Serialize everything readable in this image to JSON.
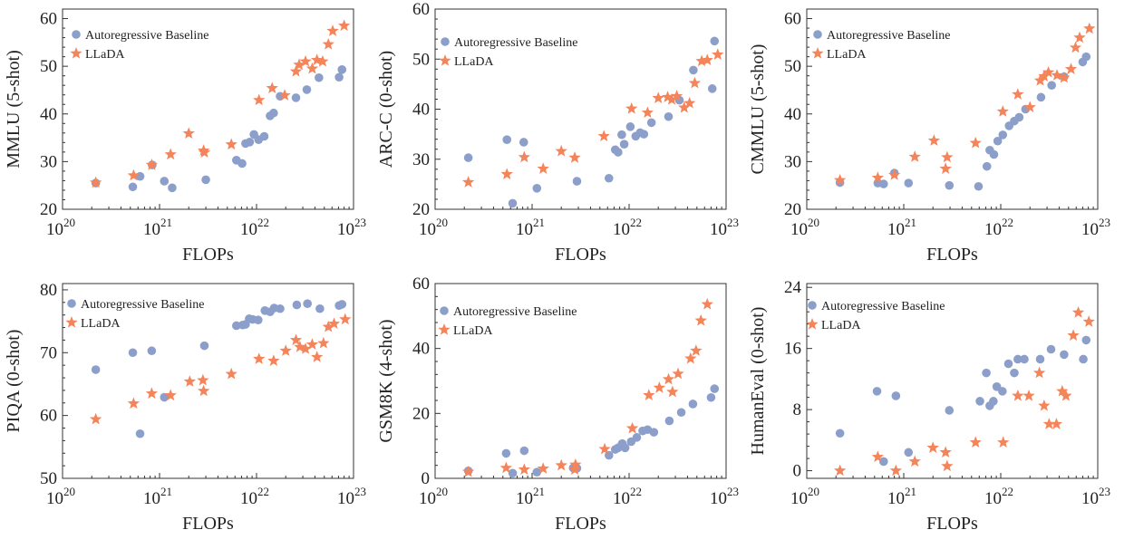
{
  "colors": {
    "baseline": "#8C9FCA",
    "llada": "#F4845A"
  },
  "chart_data": [
    {
      "type": "scatter",
      "ylabel": "MMLU (5-shot)",
      "xlabel": "FLOPs",
      "xscale": "log",
      "xlim": [
        1e+20,
        1e+23
      ],
      "x_ticks": [
        {
          "base": "10",
          "exp": "20"
        },
        {
          "base": "10",
          "exp": "21"
        },
        {
          "base": "10",
          "exp": "22"
        },
        {
          "base": "10",
          "exp": "23"
        }
      ],
      "ylim": [
        20,
        62
      ],
      "y_ticks": [
        20,
        30,
        40,
        50,
        60
      ],
      "legend": "top-left",
      "series": [
        {
          "name": "Autoregressive Baseline",
          "marker": "circle",
          "x": [
            2.2e+20,
            5.3e+20,
            6.3e+20,
            8.4e+20,
            1.12e+21,
            1.35e+21,
            3e+21,
            6.2e+21,
            7.1e+21,
            7.7e+21,
            8.5e+21,
            9.4e+21,
            1.05e+22,
            1.2e+22,
            1.38e+22,
            1.5e+22,
            1.75e+22,
            2.55e+22,
            3.3e+22,
            4.4e+22,
            7.1e+22,
            7.6e+22
          ],
          "y": [
            25.5,
            24.7,
            26.9,
            29.3,
            25.9,
            24.5,
            26.2,
            30.3,
            29.6,
            33.8,
            34.1,
            35.7,
            34.6,
            35.3,
            39.6,
            40.2,
            43.7,
            43.4,
            45.1,
            47.6,
            47.7,
            49.3
          ]
        },
        {
          "name": "LLaDA",
          "marker": "star",
          "x": [
            2.2e+20,
            5.4e+20,
            8.3e+20,
            1.3e+21,
            2e+21,
            2.85e+21,
            2.9e+21,
            5.5e+21,
            1.06e+22,
            1.45e+22,
            1.95e+22,
            2.55e+22,
            2.75e+22,
            3.2e+22,
            3.75e+22,
            4.2e+22,
            4.8e+22,
            5.5e+22,
            6.1e+22,
            8e+22
          ],
          "y": [
            25.6,
            27.1,
            29.3,
            31.5,
            35.9,
            32.3,
            31.9,
            33.6,
            42.9,
            45.4,
            43.9,
            48.9,
            50.3,
            51.0,
            49.5,
            51.3,
            51.0,
            54.6,
            57.4,
            58.5
          ]
        }
      ]
    },
    {
      "type": "scatter",
      "ylabel": "ARC-C (0-shot)",
      "xlabel": "FLOPs",
      "xscale": "log",
      "xlim": [
        1e+20,
        1e+23
      ],
      "x_ticks": [
        {
          "base": "10",
          "exp": "20"
        },
        {
          "base": "10",
          "exp": "21"
        },
        {
          "base": "10",
          "exp": "22"
        },
        {
          "base": "10",
          "exp": "23"
        }
      ],
      "ylim": [
        20,
        60
      ],
      "y_ticks": [
        20,
        30,
        40,
        50,
        60
      ],
      "legend": "top-center",
      "series": [
        {
          "name": "Autoregressive Baseline",
          "marker": "circle",
          "x": [
            2.2e+20,
            5.5e+20,
            6.3e+20,
            8.2e+20,
            1.12e+21,
            2.9e+21,
            6.2e+21,
            7.2e+21,
            7.7e+21,
            8.4e+21,
            8.9e+21,
            1.03e+22,
            1.17e+22,
            1.3e+22,
            1.42e+22,
            1.7e+22,
            2.55e+22,
            3.3e+22,
            4.6e+22,
            7.2e+22,
            7.6e+22
          ],
          "y": [
            30.3,
            33.9,
            21.2,
            33.4,
            24.2,
            25.6,
            26.2,
            31.9,
            31.4,
            34.9,
            33.0,
            36.5,
            34.6,
            35.3,
            35.0,
            37.3,
            38.5,
            41.8,
            47.8,
            44.1,
            53.6
          ]
        },
        {
          "name": "LLaDA",
          "marker": "star",
          "x": [
            2.2e+20,
            5.5e+20,
            8.3e+20,
            1.3e+21,
            2e+21,
            2.75e+21,
            5.5e+21,
            1.06e+22,
            1.55e+22,
            2e+22,
            2.5e+22,
            2.75e+22,
            3.1e+22,
            3.7e+22,
            4.2e+22,
            4.75e+22,
            5.6e+22,
            6.4e+22,
            8.2e+22
          ],
          "y": [
            25.4,
            27.0,
            30.4,
            28.1,
            31.6,
            30.3,
            34.6,
            40.1,
            39.3,
            42.2,
            42.4,
            41.9,
            42.6,
            40.3,
            41.2,
            45.2,
            49.6,
            49.8,
            50.9
          ]
        }
      ]
    },
    {
      "type": "scatter",
      "ylabel": "CMMLU (5-shot)",
      "xlabel": "FLOPs",
      "xscale": "log",
      "xlim": [
        1e+20,
        1e+23
      ],
      "x_ticks": [
        {
          "base": "10",
          "exp": "20"
        },
        {
          "base": "10",
          "exp": "21"
        },
        {
          "base": "10",
          "exp": "22"
        },
        {
          "base": "10",
          "exp": "23"
        }
      ],
      "ylim": [
        20,
        62
      ],
      "y_ticks": [
        20,
        30,
        40,
        50,
        60
      ],
      "legend": "top-left",
      "series": [
        {
          "name": "Autoregressive Baseline",
          "marker": "circle",
          "x": [
            2.2e+20,
            5.4e+20,
            6.2e+20,
            8e+20,
            1.12e+21,
            2.95e+21,
            5.9e+21,
            7.2e+21,
            7.7e+21,
            8.5e+21,
            9.3e+21,
            1.05e+22,
            1.22e+22,
            1.38e+22,
            1.55e+22,
            1.8e+22,
            2.6e+22,
            3.35e+22,
            4.5e+22,
            7e+22,
            7.6e+22
          ],
          "y": [
            25.6,
            25.5,
            25.3,
            27.6,
            25.5,
            25.0,
            24.8,
            29.0,
            32.4,
            31.5,
            34.3,
            35.6,
            37.5,
            38.5,
            39.3,
            41.0,
            43.5,
            46.0,
            47.8,
            50.9,
            52.0
          ]
        },
        {
          "name": "LLaDA",
          "marker": "star",
          "x": [
            2.2e+20,
            5.4e+20,
            8e+20,
            1.3e+21,
            2.05e+21,
            2.7e+21,
            2.8e+21,
            5.5e+21,
            1.05e+22,
            1.5e+22,
            2e+22,
            2.55e+22,
            2.8e+22,
            3.1e+22,
            3.8e+22,
            4.5e+22,
            5.3e+22,
            5.9e+22,
            6.5e+22,
            8.2e+22
          ],
          "y": [
            26.1,
            26.6,
            27.2,
            31.0,
            34.4,
            28.5,
            30.9,
            33.9,
            40.5,
            44.1,
            41.4,
            47.0,
            47.9,
            48.7,
            48.1,
            47.6,
            49.4,
            53.9,
            56.0,
            57.9
          ]
        }
      ]
    },
    {
      "type": "scatter",
      "ylabel": "PIQA (0-shot)",
      "xlabel": "FLOPs",
      "xscale": "log",
      "xlim": [
        1e+20,
        1e+23
      ],
      "x_ticks": [
        {
          "base": "10",
          "exp": "20"
        },
        {
          "base": "10",
          "exp": "21"
        },
        {
          "base": "10",
          "exp": "22"
        },
        {
          "base": "10",
          "exp": "23"
        }
      ],
      "ylim": [
        50,
        81
      ],
      "y_ticks": [
        50,
        60,
        70,
        80
      ],
      "legend": "top-left",
      "series": [
        {
          "name": "Autoregressive Baseline",
          "marker": "circle",
          "x": [
            2.2e+20,
            5.3e+20,
            6.3e+20,
            8.3e+20,
            1.12e+21,
            2.9e+21,
            6.2e+21,
            7.2e+21,
            7.7e+21,
            8.4e+21,
            9.1e+21,
            1.04e+22,
            1.22e+22,
            1.38e+22,
            1.52e+22,
            1.75e+22,
            2.6e+22,
            3.35e+22,
            4.5e+22,
            7.1e+22,
            7.6e+22
          ],
          "y": [
            67.3,
            70.0,
            57.1,
            70.3,
            62.9,
            71.1,
            74.3,
            74.4,
            74.5,
            75.4,
            75.3,
            75.2,
            76.7,
            76.5,
            77.1,
            77.0,
            77.6,
            77.8,
            77.0,
            77.5,
            77.7
          ]
        },
        {
          "name": "LLaDA",
          "marker": "star",
          "x": [
            2.2e+20,
            5.4e+20,
            8.3e+20,
            1.3e+21,
            2.05e+21,
            2.8e+21,
            2.85e+21,
            5.5e+21,
            1.06e+22,
            1.5e+22,
            2e+22,
            2.55e+22,
            2.8e+22,
            3.2e+22,
            3.75e+22,
            4.2e+22,
            4.9e+22,
            5.5e+22,
            6.3e+22,
            8.2e+22
          ],
          "y": [
            59.4,
            61.9,
            63.5,
            63.2,
            65.4,
            65.6,
            63.9,
            66.6,
            69.0,
            68.7,
            70.3,
            72.0,
            70.9,
            70.6,
            71.3,
            69.3,
            71.5,
            74.1,
            74.6,
            75.3
          ]
        }
      ]
    },
    {
      "type": "scatter",
      "ylabel": "GSM8K (4-shot)",
      "xlabel": "FLOPs",
      "xscale": "log",
      "xlim": [
        1e+20,
        1e+23
      ],
      "x_ticks": [
        {
          "base": "10",
          "exp": "20"
        },
        {
          "base": "10",
          "exp": "21"
        },
        {
          "base": "10",
          "exp": "22"
        },
        {
          "base": "10",
          "exp": "23"
        }
      ],
      "ylim": [
        0,
        60
      ],
      "y_ticks": [
        0,
        20,
        40,
        60
      ],
      "legend": "top-left",
      "series": [
        {
          "name": "Autoregressive Baseline",
          "marker": "circle",
          "x": [
            2.2e+20,
            5.4e+20,
            6.3e+20,
            8.3e+20,
            1.12e+21,
            2.65e+21,
            2.9e+21,
            6.2e+21,
            7.2e+21,
            7.7e+21,
            8.5e+21,
            9.1e+21,
            1.05e+22,
            1.2e+22,
            1.38e+22,
            1.55e+22,
            1.8e+22,
            2.6e+22,
            3.45e+22,
            4.55e+22,
            7e+22,
            7.6e+22
          ],
          "y": [
            2.3,
            7.7,
            1.6,
            8.5,
            1.9,
            3.2,
            3.1,
            7.1,
            8.9,
            9.4,
            10.7,
            9.4,
            11.3,
            12.6,
            14.6,
            15.0,
            14.2,
            17.7,
            20.3,
            22.9,
            24.9,
            27.6
          ]
        },
        {
          "name": "LLaDA",
          "marker": "star",
          "x": [
            2.2e+20,
            5.4e+20,
            8.3e+20,
            1.3e+21,
            2e+21,
            2.75e+21,
            2.8e+21,
            5.6e+21,
            1.08e+22,
            1.6e+22,
            2.05e+22,
            2.55e+22,
            2.8e+22,
            3.2e+22,
            4.3e+22,
            4.9e+22,
            5.5e+22,
            6.4e+22
          ],
          "y": [
            2.0,
            3.2,
            2.7,
            3.0,
            4.0,
            2.7,
            4.2,
            9.0,
            15.4,
            25.6,
            27.9,
            30.5,
            26.6,
            32.2,
            36.9,
            39.3,
            48.6,
            53.6
          ]
        }
      ]
    },
    {
      "type": "scatter",
      "ylabel": "HumanEval (0-shot)",
      "xlabel": "FLOPs",
      "xscale": "log",
      "xlim": [
        1e+20,
        1e+23
      ],
      "x_ticks": [
        {
          "base": "10",
          "exp": "20"
        },
        {
          "base": "10",
          "exp": "21"
        },
        {
          "base": "10",
          "exp": "22"
        },
        {
          "base": "10",
          "exp": "23"
        }
      ],
      "ylim": [
        -1,
        24.5
      ],
      "y_ticks": [
        0,
        8,
        16,
        24
      ],
      "legend": "top-left",
      "series": [
        {
          "name": "Autoregressive Baseline",
          "marker": "circle",
          "x": [
            2.2e+20,
            5.3e+20,
            6.2e+20,
            8.3e+20,
            1.12e+21,
            2.95e+21,
            6.1e+21,
            7.1e+21,
            7.7e+21,
            8.4e+21,
            9.1e+21,
            1.04e+22,
            1.2e+22,
            1.38e+22,
            1.5e+22,
            1.75e+22,
            2.55e+22,
            3.3e+22,
            4.5e+22,
            7.1e+22,
            7.6e+22
          ],
          "y": [
            4.9,
            10.4,
            1.2,
            9.8,
            2.4,
            7.9,
            9.1,
            12.8,
            8.5,
            9.1,
            11.0,
            10.4,
            14.0,
            12.8,
            14.6,
            14.6,
            14.6,
            15.9,
            15.2,
            14.6,
            17.1
          ]
        },
        {
          "name": "LLaDA",
          "marker": "star",
          "x": [
            2.2e+20,
            5.4e+20,
            8.3e+20,
            1.3e+21,
            2e+21,
            2.7e+21,
            2.8e+21,
            5.5e+21,
            1.06e+22,
            1.5e+22,
            1.95e+22,
            2.5e+22,
            2.8e+22,
            3.15e+22,
            3.75e+22,
            4.3e+22,
            4.7e+22,
            5.6e+22,
            6.3e+22,
            8.1e+22
          ],
          "y": [
            0.0,
            1.8,
            0.0,
            1.2,
            3.0,
            2.4,
            0.6,
            3.7,
            3.7,
            9.8,
            9.8,
            12.8,
            8.5,
            6.1,
            6.1,
            10.4,
            9.8,
            17.7,
            20.7,
            19.5
          ]
        }
      ]
    }
  ]
}
